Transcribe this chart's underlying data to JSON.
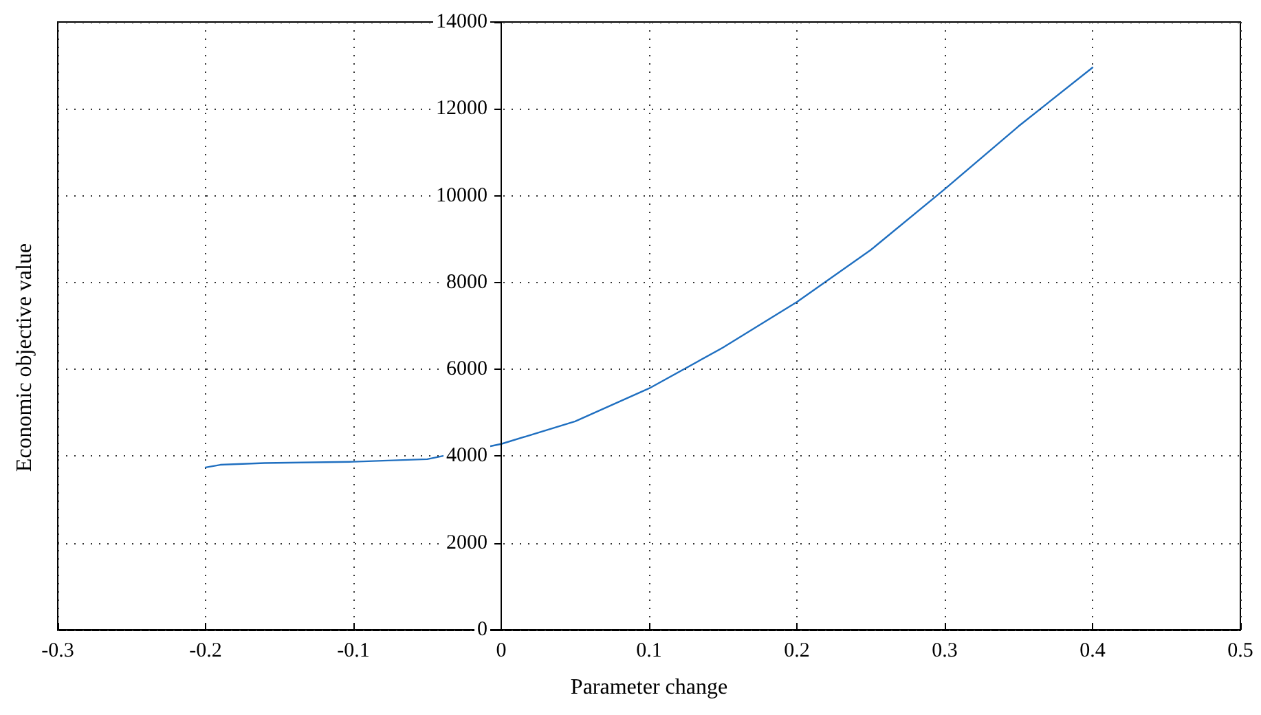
{
  "chart_data": {
    "type": "line",
    "xlabel": "Parameter change",
    "ylabel": "Economic objective value",
    "color": "#1f6fc0",
    "marker": "none",
    "line_style": "solid",
    "grid": true,
    "x": [
      -0.2,
      -0.19,
      -0.16,
      -0.1,
      -0.05,
      0,
      0.05,
      0.1,
      0.15,
      0.2,
      0.25,
      0.3,
      0.35,
      0.4
    ],
    "values": [
      3740,
      3800,
      3840,
      3870,
      3930,
      4280,
      4800,
      5560,
      6500,
      7550,
      8750,
      10150,
      11600,
      12950
    ],
    "xlim": [
      -0.3,
      0.5
    ],
    "xticks": [
      -0.3,
      -0.2,
      -0.1,
      0,
      0.1,
      0.2,
      0.3,
      0.4,
      0.5
    ],
    "ylim": [
      0,
      14000
    ],
    "yticks": [
      0,
      2000,
      4000,
      6000,
      8000,
      10000,
      12000,
      14000
    ]
  }
}
